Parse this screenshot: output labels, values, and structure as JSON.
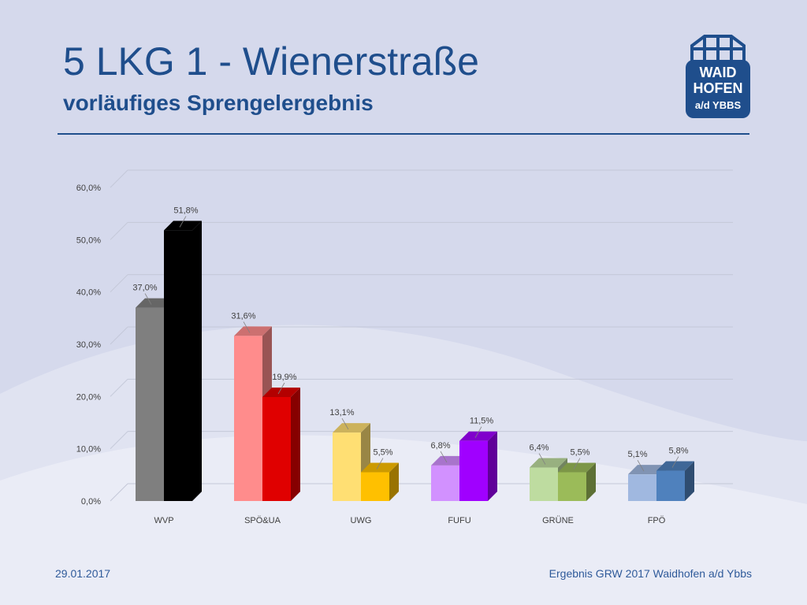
{
  "header": {
    "title": "5 LKG 1 - Wienerstraße",
    "subtitle": "vorläufiges Sprengelergebnis"
  },
  "logo": {
    "line1": "WAID",
    "line2": "HOFEN",
    "line3": "a/d YBBS",
    "color": "#1f4e8c"
  },
  "footer": {
    "date": "29.01.2017",
    "source": "Ergebnis GRW 2017 Waidhofen a/d Ybbs"
  },
  "chart_data": {
    "type": "bar",
    "categories": [
      "WVP",
      "SPÖ&UA",
      "UWG",
      "FUFU",
      "GRÜNE",
      "FPÖ"
    ],
    "series": [
      {
        "values": [
          37.0,
          31.6,
          13.1,
          6.8,
          6.4,
          5.1
        ],
        "labels": [
          "37,0%",
          "31,6%",
          "13,1%",
          "6,8%",
          "6,4%",
          "5,1%"
        ],
        "colors": [
          "#7f7f7f",
          "#ff8c8c",
          "#ffdf73",
          "#d291ff",
          "#bedca0",
          "#a0b8e0"
        ]
      },
      {
        "values": [
          51.8,
          19.9,
          5.5,
          11.5,
          5.5,
          5.8
        ],
        "labels": [
          "51,8%",
          "19,9%",
          "5,5%",
          "11,5%",
          "5,5%",
          "5,8%"
        ],
        "colors": [
          "#000000",
          "#e00000",
          "#ffc000",
          "#a000ff",
          "#9bbb59",
          "#4f81bd"
        ]
      }
    ],
    "yticks": [
      "0,0%",
      "10,0%",
      "20,0%",
      "30,0%",
      "40,0%",
      "50,0%",
      "60,0%"
    ],
    "ylim": [
      0,
      60
    ],
    "grid": true,
    "legend": "none"
  }
}
